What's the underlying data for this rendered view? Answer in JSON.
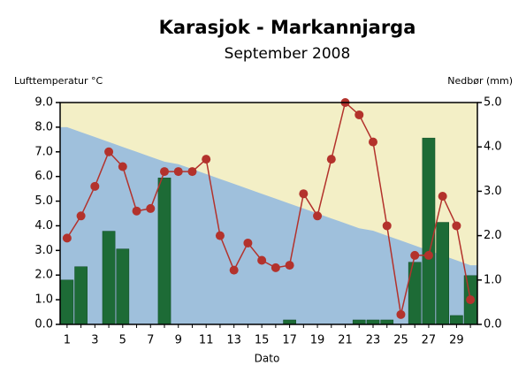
{
  "chart_data": {
    "type": "combo",
    "title": "Karasjok - Markannjarga",
    "subtitle": "September 2008",
    "y_label": "Lufttemperatur °C",
    "y2_label": "Nedbør (mm)",
    "x_label": "Dato",
    "categories": [
      "1",
      null,
      "3",
      null,
      "5",
      null,
      "7",
      null,
      "9",
      null,
      "11",
      null,
      "13",
      null,
      "15",
      null,
      "17",
      null,
      "19",
      null,
      "21",
      null,
      "23",
      null,
      "25",
      null,
      "27",
      null,
      "29",
      null
    ],
    "ylim": [
      0,
      9
    ],
    "yticks": [
      {
        "value": 0,
        "label": "0.0"
      },
      {
        "value": 1,
        "label": "1.0"
      },
      {
        "value": 2,
        "label": "2.0"
      },
      {
        "value": 3,
        "label": "3.0"
      },
      {
        "value": 4,
        "label": "4.0"
      },
      {
        "value": 5,
        "label": "5.0"
      },
      {
        "value": 6,
        "label": "6.0"
      },
      {
        "value": 7,
        "label": "7.0"
      },
      {
        "value": 8,
        "label": "8.0"
      },
      {
        "value": 9,
        "label": "9.0"
      }
    ],
    "y2lim": [
      0,
      5
    ],
    "y2ticks": [
      {
        "value": 0,
        "label": "0.0"
      },
      {
        "value": 1,
        "label": "1.0"
      },
      {
        "value": 2,
        "label": "2.0"
      },
      {
        "value": 3,
        "label": "3.0"
      },
      {
        "value": 4,
        "label": "4.0"
      },
      {
        "value": 5,
        "label": "5.0"
      }
    ],
    "background_color": "#f3efc6",
    "series": [
      {
        "type": "area",
        "color": "#9fc0dc",
        "values": [
          8.0,
          7.8,
          7.6,
          7.4,
          7.2,
          7.0,
          6.8,
          6.6,
          6.5,
          6.3,
          6.1,
          5.9,
          5.7,
          5.5,
          5.3,
          5.1,
          4.9,
          4.7,
          4.5,
          4.3,
          4.1,
          3.9,
          3.8,
          3.6,
          3.4,
          3.2,
          3.0,
          2.8,
          2.6,
          2.4
        ]
      },
      {
        "type": "bar",
        "axis": "y2",
        "color": "#1d6b36",
        "values": [
          1.0,
          1.3,
          0,
          2.1,
          1.7,
          0,
          0,
          3.3,
          0,
          0,
          0,
          0,
          0,
          0,
          0,
          0,
          0.1,
          0,
          0,
          0,
          0,
          0.1,
          0.1,
          0.1,
          0,
          1.4,
          4.2,
          2.3,
          0.2,
          1.1
        ]
      },
      {
        "type": "line",
        "color": "#b3322c",
        "values": [
          3.5,
          4.4,
          5.6,
          7.0,
          6.4,
          4.6,
          4.7,
          6.2,
          6.2,
          6.2,
          6.7,
          3.6,
          2.2,
          3.3,
          2.6,
          2.3,
          2.4,
          5.3,
          4.4,
          6.7,
          9.0,
          8.5,
          7.4,
          4.0,
          0.4,
          2.8,
          2.8,
          5.2,
          4.0,
          1.0
        ]
      }
    ]
  }
}
